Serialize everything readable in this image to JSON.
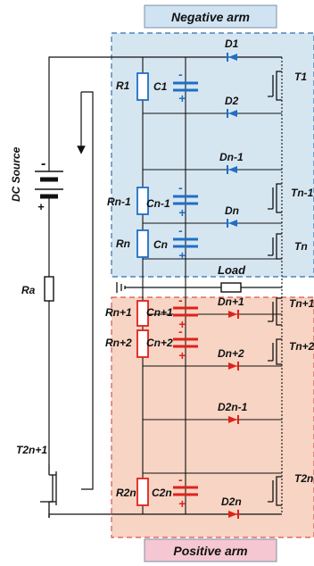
{
  "arms": {
    "negative": {
      "label": "Negative arm",
      "fill": "#d6e6f1",
      "border": "#2e6fb0",
      "label_bg": "#cfe3f2"
    },
    "positive": {
      "label": "Positive arm",
      "fill": "#f7d4c3",
      "border": "#d9534f",
      "label_bg": "#f4c7d2"
    }
  },
  "colors": {
    "negative_components": "#1f6fc7",
    "positive_components": "#e0211c",
    "wire": "#111111",
    "load": "#111111"
  },
  "source": {
    "label": "DC Source",
    "minus": "-",
    "plus": "+",
    "resistor": "Ra",
    "switch": "T2n+1"
  },
  "load": {
    "label": "Load"
  },
  "negative_rows": [
    {
      "resistor": "R1",
      "capacitor": "C1",
      "diodes": [
        "D1",
        "D2"
      ],
      "switch": "T1"
    },
    {
      "resistor": "Rn-1",
      "capacitor": "Cn-1",
      "diodes": [
        "Dn-1",
        "Dn"
      ],
      "switch": "Tn-1"
    },
    {
      "resistor": "Rn",
      "capacitor": "Cn",
      "diodes": [],
      "switch": "Tn"
    }
  ],
  "positive_rows": [
    {
      "resistor": "Rn+1",
      "capacitor": "Cn+1",
      "diodes": [
        "Dn+1"
      ],
      "switch": "Tn+1"
    },
    {
      "resistor": "Rn+2",
      "capacitor": "Cn+2",
      "diodes": [
        "Dn+2",
        "D2n-1"
      ],
      "switch": "Tn+2"
    },
    {
      "resistor": "R2n",
      "capacitor": "C2n",
      "diodes": [
        "D2n"
      ],
      "switch": "T2n"
    }
  ],
  "cap_signs": {
    "minus": "-",
    "plus": "+"
  }
}
